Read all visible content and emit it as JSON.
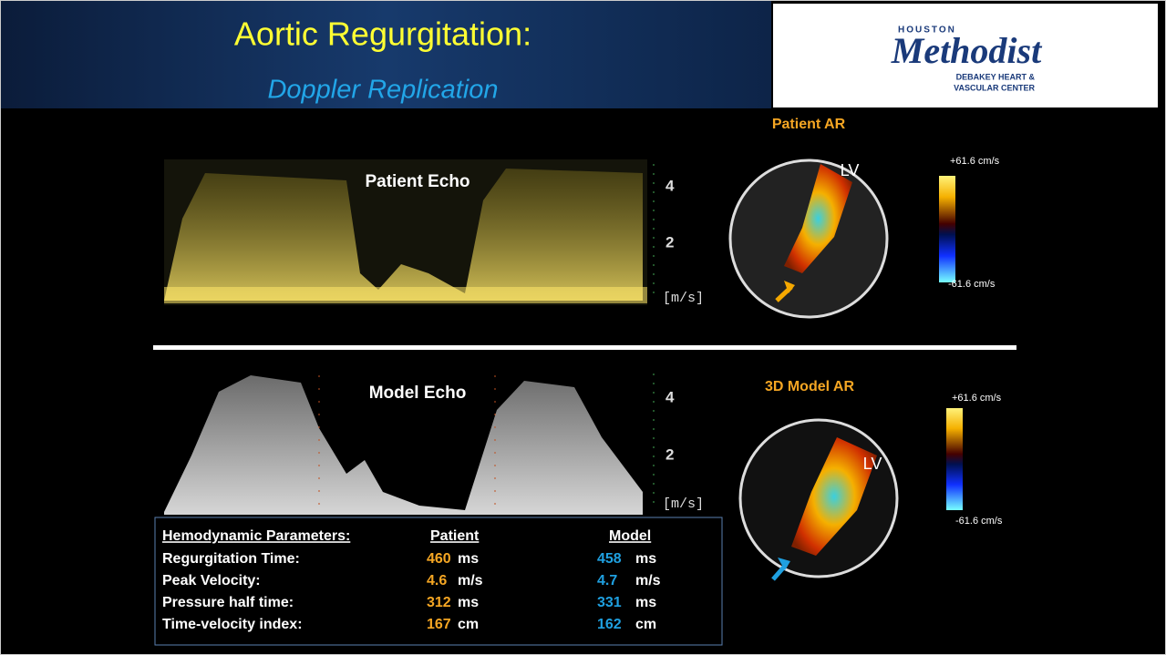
{
  "header": {
    "title": "Aortic Regurgitation:",
    "subtitle": "Doppler Replication",
    "logo": {
      "top": "HOUSTON",
      "name": "Methodist",
      "line1": "DEBAKEY HEART &",
      "line2": "VASCULAR CENTER"
    }
  },
  "patient": {
    "echo_label": "Patient Echo",
    "scale": [
      "4",
      "2",
      "[m/s]"
    ],
    "color_title": "Patient AR",
    "chamber": "LV",
    "max_label": "+61.6 cm/s",
    "min_label": "-61.6 cm/s"
  },
  "model": {
    "echo_label": "Model Echo",
    "scale": [
      "4",
      "2",
      "[m/s]"
    ],
    "color_title": "3D Model AR",
    "chamber": "LV",
    "max_label": "+61.6 cm/s",
    "min_label": "-61.6 cm/s"
  },
  "table": {
    "header": [
      "Hemodynamic Parameters:",
      "Patient",
      "Model"
    ],
    "rows": [
      [
        "Regurgitation Time:",
        "460",
        "ms",
        "458",
        "ms"
      ],
      [
        "Peak Velocity:",
        "4.6",
        "m/s",
        "4.7",
        "m/s"
      ],
      [
        "Pressure half time:",
        "312",
        "ms",
        "331",
        "ms"
      ],
      [
        "Time-velocity index:",
        "167",
        "cm",
        "162",
        "cm"
      ]
    ]
  }
}
